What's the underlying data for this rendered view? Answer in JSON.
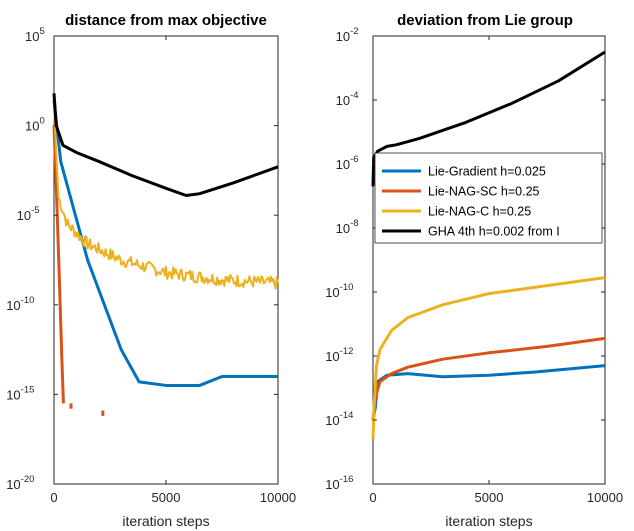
{
  "chart_data": [
    {
      "type": "line",
      "title": "distance from max objective",
      "xlabel": "iteration steps",
      "ylabel": "",
      "xlim": [
        0,
        10000
      ],
      "yscale": "log",
      "ylim_exp": [
        -20,
        5
      ],
      "x_ticks": [
        "0",
        "5000",
        "10000"
      ],
      "y_ticks": [
        {
          "base": "10",
          "exp": "-20"
        },
        {
          "base": "10",
          "exp": "-15"
        },
        {
          "base": "10",
          "exp": "-10"
        },
        {
          "base": "10",
          "exp": "-5"
        },
        {
          "base": "10",
          "exp": "0"
        },
        {
          "base": "10",
          "exp": "5"
        }
      ],
      "series": [
        {
          "color": "#0072BD",
          "log10_points": [
            [
              0,
              1.4
            ],
            [
              300,
              -2
            ],
            [
              1500,
              -7.5
            ],
            [
              3000,
              -12.5
            ],
            [
              3800,
              -14.3
            ],
            [
              5000,
              -14.5
            ],
            [
              6500,
              -14.5
            ],
            [
              7500,
              -14
            ],
            [
              10000,
              -14
            ]
          ]
        },
        {
          "color": "#D95319",
          "log10_points": [
            [
              0,
              0
            ],
            [
              120,
              -4
            ],
            [
              250,
              -9
            ],
            [
              350,
              -13
            ],
            [
              420,
              -15.5
            ]
          ]
        },
        {
          "color": "#D95319",
          "style": "fragments",
          "log10_points": [
            [
              760,
              -15.5
            ],
            [
              760,
              -15.8
            ],
            [
              2180,
              -15.9
            ],
            [
              2180,
              -16.2
            ]
          ]
        },
        {
          "color": "#EDB120",
          "style": "noisy",
          "log10_points": [
            [
              0,
              1
            ],
            [
              200,
              -4
            ],
            [
              600,
              -5.5
            ],
            [
              1500,
              -6.6
            ],
            [
              3000,
              -7.5
            ],
            [
              5000,
              -8.2
            ],
            [
              7500,
              -8.6
            ],
            [
              10000,
              -8.8
            ]
          ]
        },
        {
          "color": "#000000",
          "log10_points": [
            [
              0,
              1.8
            ],
            [
              100,
              0
            ],
            [
              400,
              -1.1
            ],
            [
              1000,
              -1.5
            ],
            [
              2000,
              -2
            ],
            [
              3500,
              -2.8
            ],
            [
              5000,
              -3.5
            ],
            [
              5900,
              -3.9
            ],
            [
              6500,
              -3.8
            ],
            [
              8000,
              -3.2
            ],
            [
              10000,
              -2.3
            ]
          ]
        }
      ]
    },
    {
      "type": "line",
      "title": "deviation from Lie group",
      "xlabel": "iteration steps",
      "ylabel": "",
      "xlim": [
        0,
        10000
      ],
      "yscale": "log",
      "ylim_exp": [
        -16,
        -2
      ],
      "x_ticks": [
        "0",
        "5000",
        "10000"
      ],
      "y_ticks": [
        {
          "base": "10",
          "exp": "-16"
        },
        {
          "base": "10",
          "exp": "-14"
        },
        {
          "base": "10",
          "exp": "-12"
        },
        {
          "base": "10",
          "exp": "-10"
        },
        {
          "base": "10",
          "exp": "-8"
        },
        {
          "base": "10",
          "exp": "-6"
        },
        {
          "base": "10",
          "exp": "-4"
        },
        {
          "base": "10",
          "exp": "-2"
        }
      ],
      "legend": {
        "placement": "upper-middle",
        "entries": [
          {
            "label": "Lie-Gradient h=0.025",
            "color": "#0072BD"
          },
          {
            "label": "Lie-NAG-SC h=0.25",
            "color": "#D95319"
          },
          {
            "label": "Lie-NAG-C h=0.25",
            "color": "#EDB120"
          },
          {
            "label": "GHA 4th h=0.002 from I",
            "color": "#000000"
          }
        ]
      },
      "series": [
        {
          "name": "Lie-Gradient h=0.025",
          "color": "#0072BD",
          "log10_points": [
            [
              0,
              -14
            ],
            [
              100,
              -13.6
            ],
            [
              200,
              -12.8
            ],
            [
              600,
              -12.6
            ],
            [
              1500,
              -12.55
            ],
            [
              3000,
              -12.65
            ],
            [
              5000,
              -12.6
            ],
            [
              7000,
              -12.5
            ],
            [
              10000,
              -12.3
            ]
          ]
        },
        {
          "name": "Lie-NAG-SC h=0.25",
          "color": "#D95319",
          "log10_points": [
            [
              0,
              -14
            ],
            [
              100,
              -13.3
            ],
            [
              300,
              -12.8
            ],
            [
              800,
              -12.55
            ],
            [
              1500,
              -12.35
            ],
            [
              3000,
              -12.1
            ],
            [
              5000,
              -11.9
            ],
            [
              7500,
              -11.7
            ],
            [
              10000,
              -11.45
            ]
          ]
        },
        {
          "name": "Lie-NAG-C h=0.25",
          "color": "#EDB120",
          "log10_points": [
            [
              0,
              -14.6
            ],
            [
              50,
              -13.5
            ],
            [
              150,
              -12.3
            ],
            [
              300,
              -11.8
            ],
            [
              800,
              -11.2
            ],
            [
              1500,
              -10.8
            ],
            [
              3000,
              -10.4
            ],
            [
              5000,
              -10.05
            ],
            [
              7500,
              -9.8
            ],
            [
              10000,
              -9.55
            ]
          ]
        },
        {
          "name": "GHA 4th h=0.002 from I",
          "color": "#000000",
          "log10_points": [
            [
              0,
              -6.7
            ],
            [
              30,
              -5.8
            ],
            [
              200,
              -5.6
            ],
            [
              600,
              -5.45
            ],
            [
              1000,
              -5.4
            ],
            [
              2000,
              -5.2
            ],
            [
              4000,
              -4.7
            ],
            [
              6000,
              -4.1
            ],
            [
              8000,
              -3.4
            ],
            [
              10000,
              -2.5
            ]
          ]
        }
      ]
    }
  ]
}
